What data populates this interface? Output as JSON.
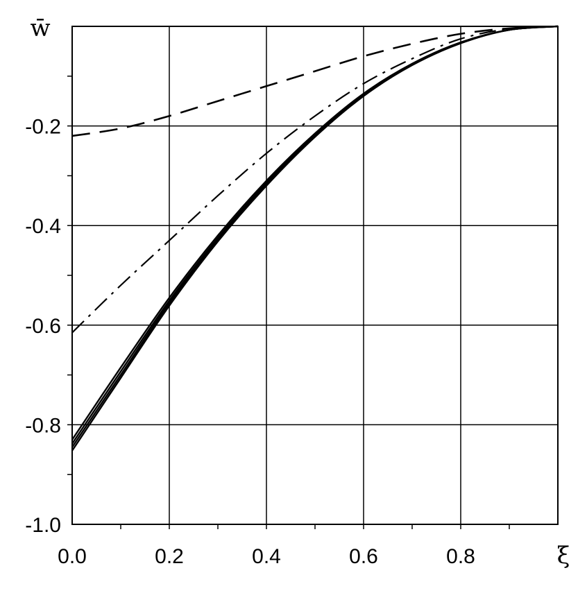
{
  "chart_data": {
    "type": "line",
    "title": "",
    "xlabel": "ξ",
    "ylabel": "w̄",
    "xlim": [
      0.0,
      1.0
    ],
    "ylim": [
      -1.0,
      0.0
    ],
    "grid": true,
    "x_tick_labels": [
      "0.0",
      "0.2",
      "0.4",
      "0.6",
      "0.8"
    ],
    "y_tick_labels": [
      "-0.2",
      "-0.4",
      "-0.6",
      "-0.8",
      "-1.0"
    ],
    "series": [
      {
        "style": "dashed",
        "x": [
          0.0,
          0.1,
          0.2,
          0.3,
          0.4,
          0.5,
          0.6,
          0.7,
          0.8,
          0.9,
          1.0
        ],
        "y": [
          -0.22,
          -0.205,
          -0.18,
          -0.15,
          -0.12,
          -0.09,
          -0.06,
          -0.035,
          -0.015,
          -0.004,
          0.0
        ]
      },
      {
        "style": "dash-dot",
        "x": [
          0.0,
          0.1,
          0.2,
          0.3,
          0.4,
          0.5,
          0.6,
          0.7,
          0.8,
          0.9,
          1.0
        ],
        "y": [
          -0.615,
          -0.52,
          -0.43,
          -0.34,
          -0.255,
          -0.18,
          -0.115,
          -0.065,
          -0.025,
          -0.005,
          0.0
        ]
      },
      {
        "style": "solid",
        "x": [
          0.0,
          0.1,
          0.2,
          0.3,
          0.4,
          0.5,
          0.6,
          0.7,
          0.8,
          0.9,
          1.0
        ],
        "y": [
          -0.83,
          -0.685,
          -0.545,
          -0.42,
          -0.31,
          -0.215,
          -0.135,
          -0.075,
          -0.032,
          -0.007,
          0.0
        ]
      },
      {
        "style": "solid",
        "x": [
          0.0,
          0.1,
          0.2,
          0.3,
          0.4,
          0.5,
          0.6,
          0.7,
          0.8,
          0.9,
          1.0
        ],
        "y": [
          -0.838,
          -0.693,
          -0.551,
          -0.425,
          -0.314,
          -0.218,
          -0.137,
          -0.076,
          -0.033,
          -0.007,
          0.0
        ]
      },
      {
        "style": "solid",
        "x": [
          0.0,
          0.1,
          0.2,
          0.3,
          0.4,
          0.5,
          0.6,
          0.7,
          0.8,
          0.9,
          1.0
        ],
        "y": [
          -0.845,
          -0.7,
          -0.556,
          -0.429,
          -0.317,
          -0.22,
          -0.139,
          -0.077,
          -0.033,
          -0.007,
          0.0
        ]
      },
      {
        "style": "solid",
        "x": [
          0.0,
          0.1,
          0.2,
          0.3,
          0.4,
          0.5,
          0.6,
          0.7,
          0.8,
          0.9,
          1.0
        ],
        "y": [
          -0.852,
          -0.706,
          -0.561,
          -0.432,
          -0.32,
          -0.222,
          -0.14,
          -0.078,
          -0.034,
          -0.007,
          0.0
        ]
      }
    ]
  }
}
